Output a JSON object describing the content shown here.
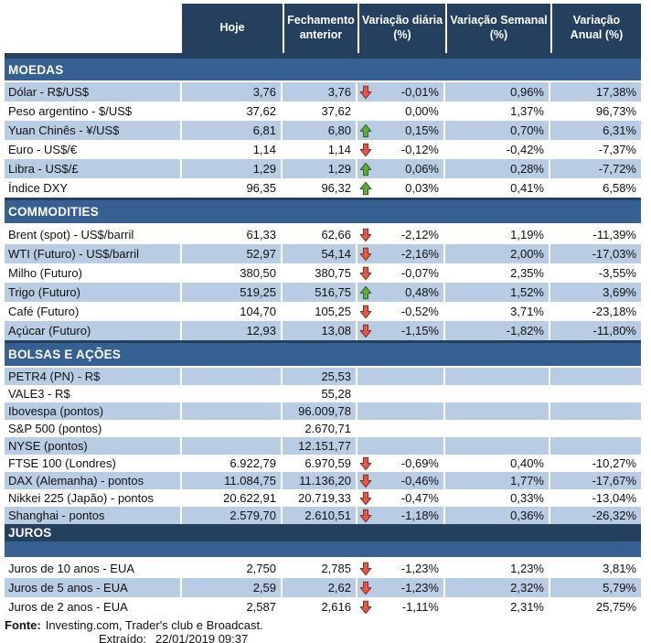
{
  "header": {
    "columns": [
      "Hoje",
      "Fechamento\nanterior",
      "Variação diária\n(%)",
      "Variação Semanal\n(%)",
      "Variação\nAnual (%)"
    ]
  },
  "colors": {
    "header_bg": "#24405E",
    "section_bg": "#376092",
    "stripe_bg": "#B8CCE4",
    "arrow_down_fill": "#DD5B4D",
    "arrow_down_border": "#8B2A20",
    "arrow_up_fill": "#62A744",
    "arrow_up_border": "#2E641F"
  },
  "sections": [
    {
      "title": "MOEDAS",
      "rows": [
        {
          "label": "Dólar - R$/US$",
          "hoje": "3,76",
          "fechamento": "3,76",
          "arrow": "down",
          "diaria": "-0,01%",
          "semanal": "0,96%",
          "anual": "17,38%"
        },
        {
          "label": "Peso argentino - $/US$",
          "hoje": "37,62",
          "fechamento": "37,62",
          "arrow": null,
          "diaria": "0,00%",
          "semanal": "1,37%",
          "anual": "96,73%"
        },
        {
          "label": "Yuan Chinês - ¥/US$",
          "hoje": "6,81",
          "fechamento": "6,80",
          "arrow": "up",
          "diaria": "0,15%",
          "semanal": "0,70%",
          "anual": "6,31%"
        },
        {
          "label": "Euro - US$/€",
          "hoje": "1,14",
          "fechamento": "1,14",
          "arrow": "down",
          "diaria": "-0,12%",
          "semanal": "-0,42%",
          "anual": "-7,37%"
        },
        {
          "label": "Libra - US$/£",
          "hoje": "1,29",
          "fechamento": "1,29",
          "arrow": "up",
          "diaria": "0,06%",
          "semanal": "0,28%",
          "anual": "-7,72%"
        },
        {
          "label": "Índice DXY",
          "hoje": "96,35",
          "fechamento": "96,32",
          "arrow": "up",
          "diaria": "0,03%",
          "semanal": "0,41%",
          "anual": "6,58%"
        }
      ]
    },
    {
      "title": "COMMODITIES",
      "rows": [
        {
          "label": "Brent (spot) - US$/barril",
          "hoje": "61,33",
          "fechamento": "62,66",
          "arrow": "down",
          "diaria": "-2,12%",
          "semanal": "1,19%",
          "anual": "-11,39%"
        },
        {
          "label": "WTI (Futuro) - US$/barril",
          "hoje": "52,97",
          "fechamento": "54,14",
          "arrow": "down",
          "diaria": "-2,16%",
          "semanal": "2,00%",
          "anual": "-17,03%"
        },
        {
          "label": "Milho (Futuro)",
          "hoje": "380,50",
          "fechamento": "380,75",
          "arrow": "down",
          "diaria": "-0,07%",
          "semanal": "2,35%",
          "anual": "-3,55%"
        },
        {
          "label": "Trigo (Futuro)",
          "hoje": "519,25",
          "fechamento": "516,75",
          "arrow": "up",
          "diaria": "0,48%",
          "semanal": "1,52%",
          "anual": "3,69%"
        },
        {
          "label": "Café (Futuro)",
          "hoje": "104,70",
          "fechamento": "105,25",
          "arrow": "down",
          "diaria": "-0,52%",
          "semanal": "3,71%",
          "anual": "-23,18%"
        },
        {
          "label": "Açúcar (Futuro)",
          "hoje": "12,93",
          "fechamento": "13,08",
          "arrow": "down",
          "diaria": "-1,15%",
          "semanal": "-1,82%",
          "anual": "-11,80%"
        }
      ]
    },
    {
      "title": "BOLSAS E AÇÕES",
      "rows": [
        {
          "label": "PETR4 (PN) - R$",
          "hoje": "",
          "fechamento": "25,53",
          "arrow": null,
          "diaria": "",
          "semanal": "",
          "anual": ""
        },
        {
          "label": "VALE3 - R$",
          "hoje": "",
          "fechamento": "55,28",
          "arrow": null,
          "diaria": "",
          "semanal": "",
          "anual": ""
        },
        {
          "label": "Ibovespa (pontos)",
          "hoje": "",
          "fechamento": "96.009,78",
          "arrow": null,
          "diaria": "",
          "semanal": "",
          "anual": ""
        },
        {
          "label": "S&P 500 (pontos)",
          "hoje": "",
          "fechamento": "2.670,71",
          "arrow": null,
          "diaria": "",
          "semanal": "",
          "anual": ""
        },
        {
          "label": "NYSE (pontos)",
          "hoje": "",
          "fechamento": "12.151,77",
          "arrow": null,
          "diaria": "",
          "semanal": "",
          "anual": ""
        },
        {
          "label": "FTSE 100 (Londres)",
          "hoje": "6.922,79",
          "fechamento": "6.970,59",
          "arrow": "down",
          "diaria": "-0,69%",
          "semanal": "0,40%",
          "anual": "-10,27%"
        },
        {
          "label": "DAX (Alemanha) - pontos",
          "hoje": "11.084,75",
          "fechamento": "11.136,20",
          "arrow": "down",
          "diaria": "-0,46%",
          "semanal": "1,77%",
          "anual": "-17,67%"
        },
        {
          "label": "Nikkei 225 (Japão) - pontos",
          "hoje": "20.622,91",
          "fechamento": "20.719,33",
          "arrow": "down",
          "diaria": "-0,47%",
          "semanal": "0,33%",
          "anual": "-13,04%"
        },
        {
          "label": "Shanghai - pontos",
          "hoje": "2.579,70",
          "fechamento": "2.610,51",
          "arrow": "down",
          "diaria": "-1,18%",
          "semanal": "0,36%",
          "anual": "-26,32%"
        }
      ]
    },
    {
      "title": "JUROS",
      "rows": [
        {
          "label": "Juros de 10 anos - EUA",
          "hoje": "2,750",
          "fechamento": "2,785",
          "arrow": "down",
          "diaria": "-1,23%",
          "semanal": "1,23%",
          "anual": "3,81%"
        },
        {
          "label": "Juros de 5 anos - EUA",
          "hoje": "2,59",
          "fechamento": "2,62",
          "arrow": "down",
          "diaria": "-1,23%",
          "semanal": "2,32%",
          "anual": "5,79%"
        },
        {
          "label": "Juros de 2 anos - EUA",
          "hoje": "2,587",
          "fechamento": "2,616",
          "arrow": "down",
          "diaria": "-1,11%",
          "semanal": "2,31%",
          "anual": "25,75%"
        }
      ]
    }
  ],
  "footer": {
    "fonte_label": "Fonte:",
    "fonte_text": "Investing.com, Trader's club e Broadcast.",
    "extraido_label": "Extraído:",
    "extraido_value": "22/01/2019 09:37"
  }
}
